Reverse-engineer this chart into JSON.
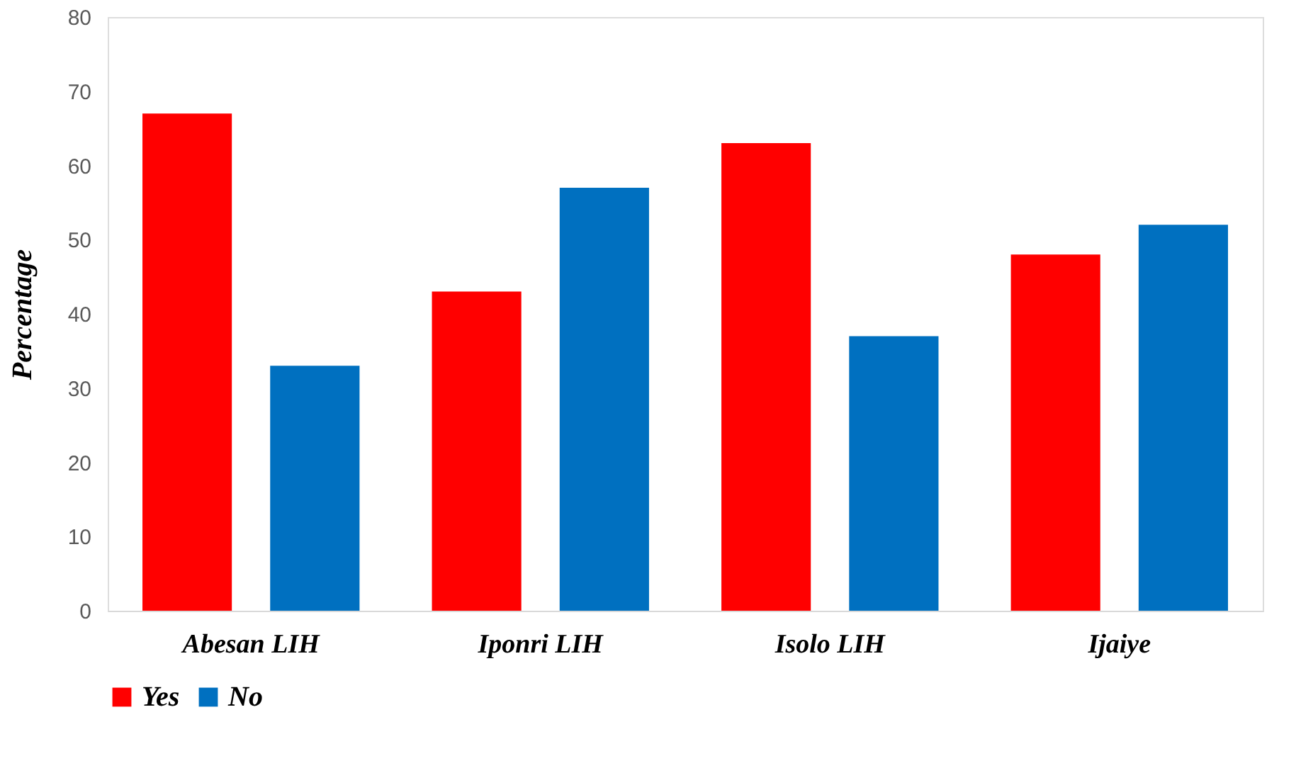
{
  "chart_data": {
    "type": "bar",
    "ylabel": "Percentage",
    "categories": [
      "Abesan LIH",
      "Iponri LIH",
      "Isolo LIH",
      "Ijaiye"
    ],
    "series": [
      {
        "name": "Yes",
        "color": "#ff0000",
        "values": [
          67,
          43,
          63,
          48
        ]
      },
      {
        "name": "No",
        "color": "#0070c0",
        "values": [
          33,
          57,
          37,
          52
        ]
      }
    ],
    "ylim": [
      0,
      80
    ],
    "yticks": [
      0,
      10,
      20,
      30,
      40,
      50,
      60,
      70,
      80
    ],
    "grid": false,
    "legend": "bottom"
  }
}
